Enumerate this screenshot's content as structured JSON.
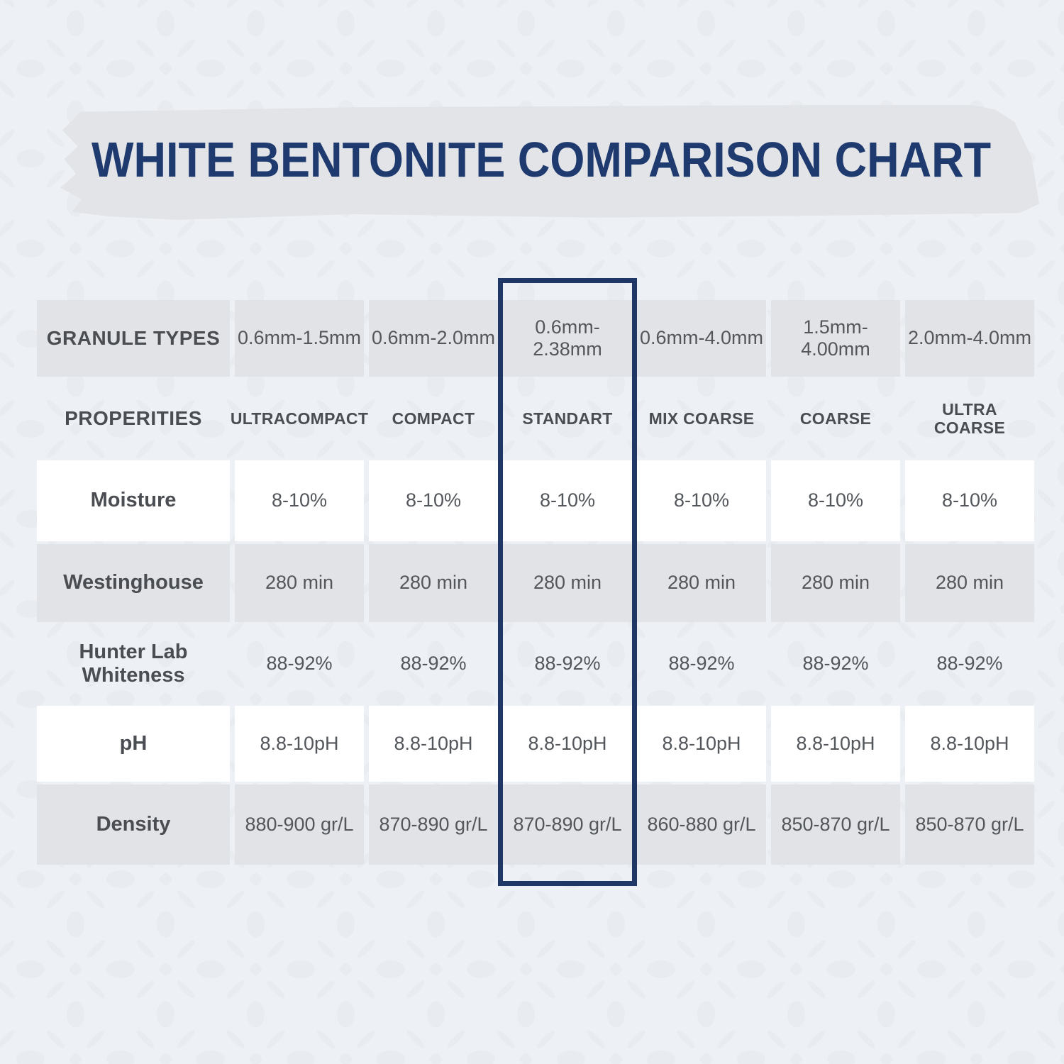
{
  "page": {
    "background_color": "#edf0f4",
    "pattern_color": "#e8ebef",
    "accent_navy": "#1f3a6e"
  },
  "title": {
    "text": "WHITE BENTONITE COMPARISON CHART",
    "color": "#1f3a6e",
    "banner_color": "#e2e4e7"
  },
  "table": {
    "granule_row_label": "GRANULE TYPES",
    "properties_row_label": "PROPERITIES",
    "granule_types": [
      "0.6mm-1.5mm",
      "0.6mm-2.0mm",
      "0.6mm-2.38mm",
      "0.6mm-4.0mm",
      "1.5mm-4.00mm",
      "2.0mm-4.0mm"
    ],
    "product_names": [
      "ULTRACOMPACT",
      "COMPACT",
      "STANDART",
      "MIX COARSE",
      "COARSE",
      "ULTRA COARSE"
    ],
    "highlighted_column": "STANDART",
    "highlight_border_color": "#1e3766",
    "cell_gray": "#e1e3e6",
    "cell_white": "#ffffff",
    "rows": [
      {
        "label": "Moisture",
        "shade": "white",
        "values": [
          "8-10%",
          "8-10%",
          "8-10%",
          "8-10%",
          "8-10%",
          "8-10%"
        ]
      },
      {
        "label": "Westinghouse",
        "shade": "gray",
        "values": [
          "280 min",
          "280 min",
          "280 min",
          "280 min",
          "280 min",
          "280 min"
        ]
      },
      {
        "label": "Hunter Lab Whiteness",
        "shade": "none",
        "values": [
          "88-92%",
          "88-92%",
          "88-92%",
          "88-92%",
          "88-92%",
          "88-92%"
        ]
      },
      {
        "label": "pH",
        "shade": "white",
        "values": [
          "8.8-10pH",
          "8.8-10pH",
          "8.8-10pH",
          "8.8-10pH",
          "8.8-10pH",
          "8.8-10pH"
        ]
      },
      {
        "label": "Density",
        "shade": "gray",
        "values": [
          "880-900 gr/L",
          "870-890 gr/L",
          "870-890 gr/L",
          "860-880 gr/L",
          "850-870 gr/L",
          "850-870 gr/L"
        ]
      }
    ]
  },
  "chart_data": {
    "type": "table",
    "title": "WHITE BENTONITE COMPARISON CHART",
    "columns": [
      "PROPERITIES",
      "ULTRACOMPACT",
      "COMPACT",
      "STANDART",
      "MIX COARSE",
      "COARSE",
      "ULTRA COARSE"
    ],
    "granule_types": [
      "0.6mm-1.5mm",
      "0.6mm-2.0mm",
      "0.6mm-2.38mm",
      "0.6mm-4.0mm",
      "1.5mm-4.00mm",
      "2.0mm-4.0mm"
    ],
    "rows": [
      [
        "Moisture",
        "8-10%",
        "8-10%",
        "8-10%",
        "8-10%",
        "8-10%",
        "8-10%"
      ],
      [
        "Westinghouse",
        "280 min",
        "280 min",
        "280 min",
        "280 min",
        "280 min",
        "280 min"
      ],
      [
        "Hunter Lab Whiteness",
        "88-92%",
        "88-92%",
        "88-92%",
        "88-92%",
        "88-92%",
        "88-92%"
      ],
      [
        "pH",
        "8.8-10pH",
        "8.8-10pH",
        "8.8-10pH",
        "8.8-10pH",
        "8.8-10pH",
        "8.8-10pH"
      ],
      [
        "Density",
        "880-900 gr/L",
        "870-890 gr/L",
        "870-890 gr/L",
        "860-880 gr/L",
        "850-870 gr/L",
        "850-870 gr/L"
      ]
    ],
    "highlighted_column": "STANDART",
    "legend_position": "none",
    "grid": "off"
  }
}
